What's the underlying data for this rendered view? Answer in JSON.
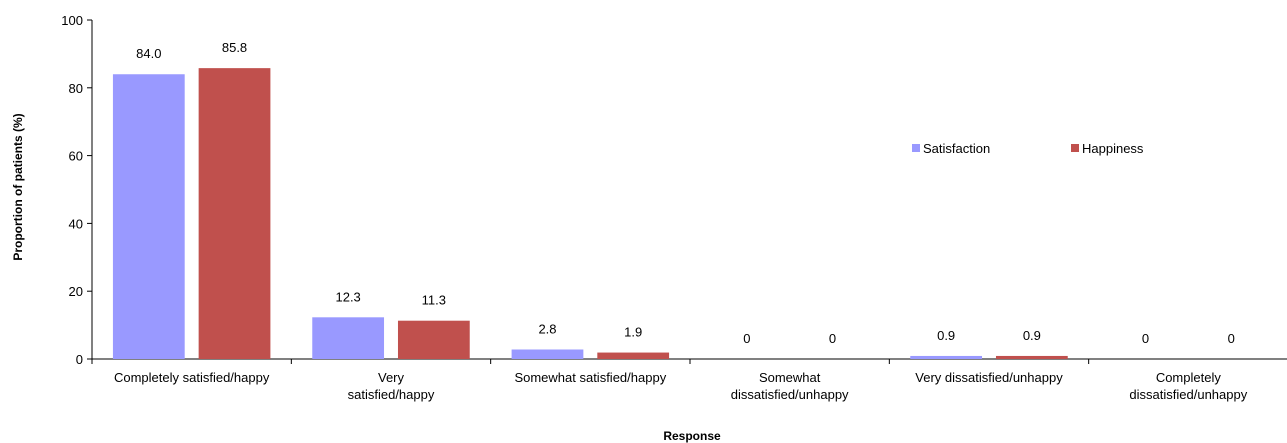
{
  "chart_data": {
    "type": "bar",
    "categories": [
      [
        "Completely satisfied/happy"
      ],
      [
        "Very",
        "satisfied/happy"
      ],
      [
        "Somewhat satisfied/happy"
      ],
      [
        "Somewhat",
        "dissatisfied/unhappy"
      ],
      [
        "Very dissatisfied/unhappy"
      ],
      [
        "Completely",
        "dissatisfied/unhappy"
      ]
    ],
    "series": [
      {
        "name": "Satisfaction",
        "color": "#9999ff",
        "values": [
          84.0,
          12.3,
          2.8,
          0,
          0.9,
          0
        ],
        "labels": [
          "84.0",
          "12.3",
          "2.8",
          "0",
          "0.9",
          "0"
        ]
      },
      {
        "name": "Happiness",
        "color": "#c0504d",
        "values": [
          85.8,
          11.3,
          1.9,
          0,
          0.9,
          0
        ],
        "labels": [
          "85.8",
          "11.3",
          "1.9",
          "0",
          "0.9",
          "0"
        ]
      }
    ],
    "xlabel": "Response",
    "ylabel": "Proportion of patients (%)",
    "ylim": [
      0,
      100
    ],
    "yticks": [
      0,
      20,
      40,
      60,
      80,
      100
    ],
    "grid": false,
    "legend_position": "right"
  }
}
